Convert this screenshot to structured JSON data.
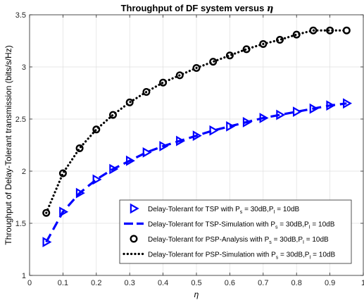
{
  "chart_data": {
    "type": "line",
    "title_main": "Throughput of DF system versus ",
    "title_symbol": "η",
    "xlabel": "η",
    "ylabel": "Throughput of Delay-Tolerant transmission (bits/s/Hz)",
    "xlim": [
      0,
      1
    ],
    "ylim": [
      1,
      3.5
    ],
    "xticks": [
      0,
      0.1,
      0.2,
      0.3,
      0.4,
      0.5,
      0.6,
      0.7,
      0.8,
      0.9,
      1
    ],
    "xtick_labels": [
      "0",
      "0.1",
      "0.2",
      "0.3",
      "0.4",
      "0.5",
      "0.6",
      "0.7",
      "0.8",
      "0.9",
      "1"
    ],
    "yticks": [
      1,
      1.5,
      2,
      2.5,
      3,
      3.5
    ],
    "ytick_labels": [
      "1",
      "1.5",
      "2",
      "2.5",
      "3",
      "3.5"
    ],
    "grid": true,
    "legend_position": "bottom-right",
    "series": [
      {
        "name_prefix": "Delay-Tolerant for TSP with P",
        "name_sub1": "s",
        "name_mid": " = 30dB,P",
        "name_sub2": "I",
        "name_suffix": " = 10dB",
        "style": "markers-triangle",
        "color": "#0000ff",
        "x": [
          0.05,
          0.1,
          0.15,
          0.2,
          0.25,
          0.3,
          0.35,
          0.4,
          0.45,
          0.5,
          0.55,
          0.6,
          0.65,
          0.7,
          0.75,
          0.8,
          0.85,
          0.9,
          0.95
        ],
        "y": [
          1.32,
          1.61,
          1.79,
          1.92,
          2.02,
          2.1,
          2.18,
          2.24,
          2.29,
          2.34,
          2.39,
          2.43,
          2.47,
          2.51,
          2.54,
          2.57,
          2.6,
          2.63,
          2.65
        ]
      },
      {
        "name_prefix": "Delay-Tolerant for TSP-Simulation with P",
        "name_sub1": "s",
        "name_mid": " = 30dB,P",
        "name_sub2": "I",
        "name_suffix": " = 10dB",
        "style": "dashed",
        "color": "#0000ff",
        "x": [
          0.05,
          0.1,
          0.15,
          0.2,
          0.25,
          0.3,
          0.35,
          0.4,
          0.45,
          0.5,
          0.55,
          0.6,
          0.65,
          0.7,
          0.75,
          0.8,
          0.85,
          0.9,
          0.95
        ],
        "y": [
          1.32,
          1.61,
          1.79,
          1.92,
          2.02,
          2.1,
          2.18,
          2.24,
          2.29,
          2.34,
          2.39,
          2.43,
          2.47,
          2.51,
          2.54,
          2.57,
          2.6,
          2.63,
          2.65
        ]
      },
      {
        "name_prefix": "Delay-Tolerant for PSP-Analysis with P",
        "name_sub1": "s",
        "name_mid": " = 30dB,P",
        "name_sub2": "I",
        "name_suffix": " = 10dB",
        "style": "markers-circle",
        "color": "#000000",
        "x": [
          0.05,
          0.1,
          0.15,
          0.2,
          0.25,
          0.3,
          0.35,
          0.4,
          0.45,
          0.5,
          0.55,
          0.6,
          0.65,
          0.7,
          0.75,
          0.8,
          0.85,
          0.9,
          0.95
        ],
        "y": [
          1.6,
          1.98,
          2.22,
          2.4,
          2.54,
          2.66,
          2.76,
          2.85,
          2.92,
          2.99,
          3.05,
          3.11,
          3.17,
          3.22,
          3.26,
          3.31,
          3.35,
          3.35,
          3.35
        ]
      },
      {
        "name_prefix": "Delay-Tolerant for PSP-Simulation with P",
        "name_sub1": "s",
        "name_mid": " = 30dB,P",
        "name_sub2": "I",
        "name_suffix": " = 10dB",
        "style": "dotted",
        "color": "#000000",
        "x": [
          0.05,
          0.1,
          0.15,
          0.2,
          0.25,
          0.3,
          0.35,
          0.4,
          0.45,
          0.5,
          0.55,
          0.6,
          0.65,
          0.7,
          0.75,
          0.8,
          0.85,
          0.9,
          0.95
        ],
        "y": [
          1.6,
          1.98,
          2.22,
          2.4,
          2.54,
          2.66,
          2.76,
          2.85,
          2.92,
          2.99,
          3.05,
          3.11,
          3.17,
          3.22,
          3.26,
          3.31,
          3.35,
          3.35,
          3.35
        ]
      }
    ]
  }
}
